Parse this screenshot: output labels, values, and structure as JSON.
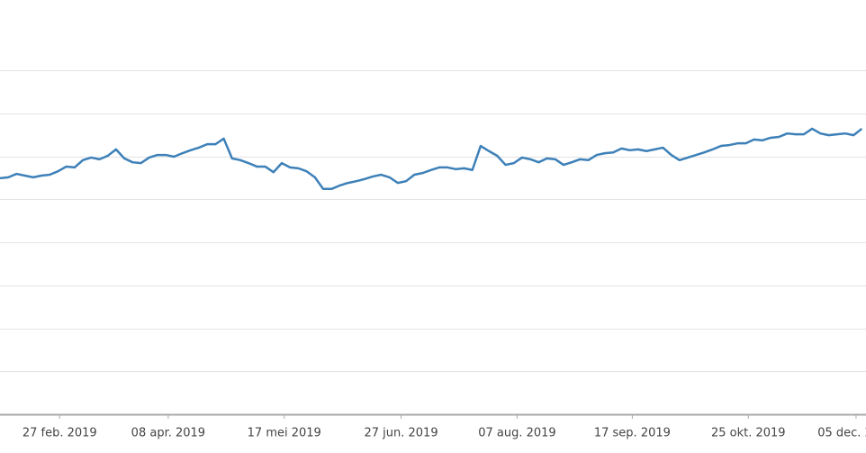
{
  "chart_data": {
    "type": "line",
    "values": [
      5.49,
      5.51,
      5.59,
      5.55,
      5.51,
      5.55,
      5.57,
      5.65,
      5.76,
      5.74,
      5.91,
      5.97,
      5.93,
      6.01,
      6.16,
      5.95,
      5.86,
      5.84,
      5.97,
      6.03,
      6.03,
      5.99,
      6.07,
      6.14,
      6.2,
      6.28,
      6.28,
      6.41,
      5.95,
      5.91,
      5.84,
      5.76,
      5.76,
      5.63,
      5.84,
      5.74,
      5.72,
      5.65,
      5.51,
      5.24,
      5.24,
      5.32,
      5.38,
      5.42,
      5.47,
      5.53,
      5.57,
      5.51,
      5.38,
      5.42,
      5.57,
      5.61,
      5.68,
      5.74,
      5.74,
      5.7,
      5.72,
      5.68,
      6.24,
      6.12,
      6.01,
      5.8,
      5.84,
      5.97,
      5.93,
      5.86,
      5.95,
      5.93,
      5.8,
      5.86,
      5.93,
      5.91,
      6.03,
      6.07,
      6.09,
      6.18,
      6.14,
      6.16,
      6.12,
      6.16,
      6.2,
      6.03,
      5.91,
      5.97,
      6.03,
      6.09,
      6.16,
      6.24,
      6.26,
      6.3,
      6.3,
      6.39,
      6.37,
      6.43,
      6.45,
      6.53,
      6.51,
      6.51,
      6.64,
      6.53,
      6.49,
      6.51,
      6.53,
      6.49,
      6.64
    ],
    "color": "#3d80b8",
    "xlim": [
      0,
      104.5
    ],
    "xticks": [
      {
        "value": 7.2,
        "label": "27 feb. 2019"
      },
      {
        "value": 20.3,
        "label": "08 apr. 2019"
      },
      {
        "value": 34.3,
        "label": "17 mei 2019"
      },
      {
        "value": 48.4,
        "label": "27 jun. 2019"
      },
      {
        "value": 62.4,
        "label": "07 aug. 2019"
      },
      {
        "value": 76.3,
        "label": "17 sep. 2019"
      },
      {
        "value": 90.3,
        "label": "25 okt. 2019"
      },
      {
        "value": 103.3,
        "label": "05 dec. 2019"
      }
    ],
    "ylim": [
      0,
      9.6
    ],
    "yticks": [
      1,
      2,
      3,
      4,
      5,
      6,
      7,
      8
    ],
    "grid": true
  }
}
